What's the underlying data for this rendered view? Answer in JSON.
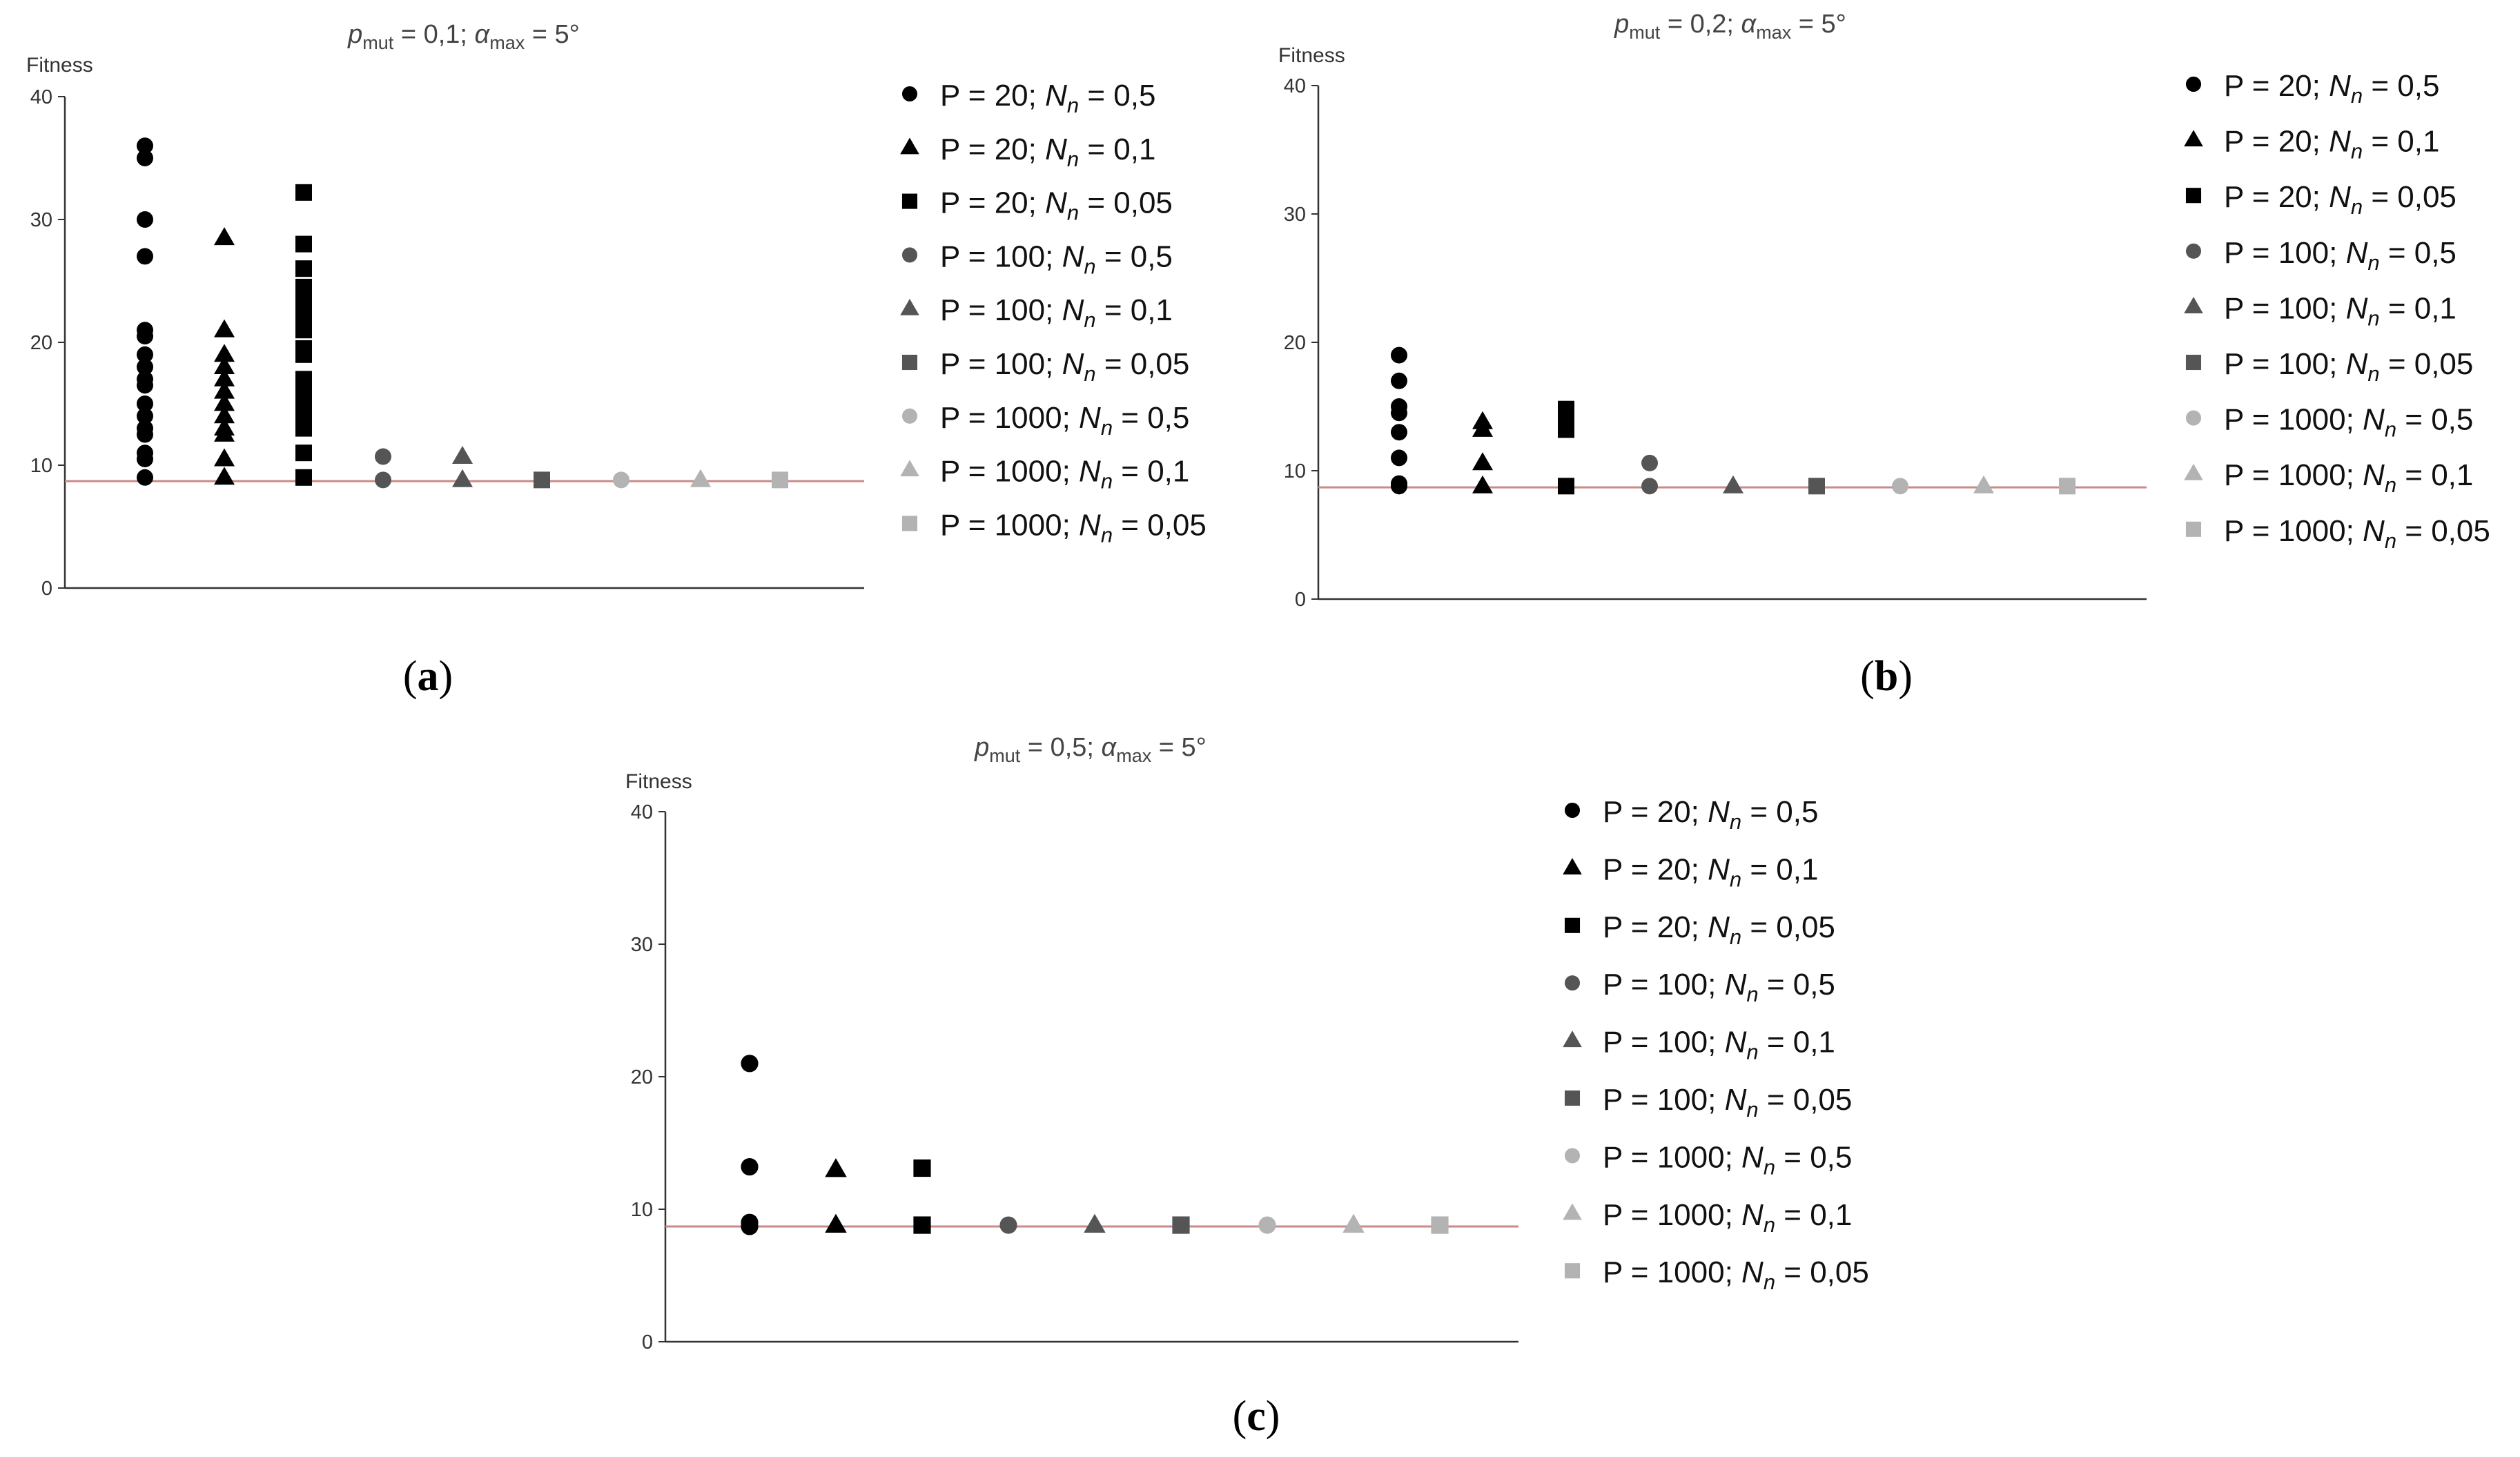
{
  "panels": [
    {
      "id": "a",
      "caption_letter": "a",
      "title": {
        "p_sym": "p",
        "p_sub": "mut",
        "p_val": " = 0,1; ",
        "a_sym": "α",
        "a_sub": "max",
        "a_val": " = 5°"
      },
      "ylabel": "Fitness",
      "yticks": [
        "0",
        "10",
        "20",
        "30",
        "40"
      ]
    },
    {
      "id": "b",
      "caption_letter": "b",
      "title": {
        "p_sym": "p",
        "p_sub": "mut",
        "p_val": " = 0,2; ",
        "a_sym": "α",
        "a_sub": "max",
        "a_val": " = 5°"
      },
      "ylabel": "Fitness",
      "yticks": [
        "0",
        "10",
        "20",
        "30",
        "40"
      ]
    },
    {
      "id": "c",
      "caption_letter": "c",
      "title": {
        "p_sym": "p",
        "p_sub": "mut",
        "p_val": " = 0,5; ",
        "a_sym": "α",
        "a_sub": "max",
        "a_val": " = 5°"
      },
      "ylabel": "Fitness",
      "yticks": [
        "0",
        "10",
        "20",
        "30",
        "40"
      ]
    }
  ],
  "legend_entries": [
    {
      "p_text": "P = 20; ",
      "n_sym": "N",
      "n_sub": "n",
      "n_val": " = 0,5",
      "marker": "circle",
      "color": "#000000"
    },
    {
      "p_text": "P = 20; ",
      "n_sym": "N",
      "n_sub": "n",
      "n_val": " = 0,1",
      "marker": "triangle",
      "color": "#000000"
    },
    {
      "p_text": "P = 20; ",
      "n_sym": "N",
      "n_sub": "n",
      "n_val": " = 0,05",
      "marker": "square",
      "color": "#000000"
    },
    {
      "p_text": "P = 100; ",
      "n_sym": "N",
      "n_sub": "n",
      "n_val": " = 0,5",
      "marker": "circle",
      "color": "#555555"
    },
    {
      "p_text": "P = 100; ",
      "n_sym": "N",
      "n_sub": "n",
      "n_val": " = 0,1",
      "marker": "triangle",
      "color": "#555555"
    },
    {
      "p_text": "P = 100; ",
      "n_sym": "N",
      "n_sub": "n",
      "n_val": " = 0,05",
      "marker": "square",
      "color": "#555555"
    },
    {
      "p_text": "P = 1000; ",
      "n_sym": "N",
      "n_sub": "n",
      "n_val": " = 0,5",
      "marker": "circle",
      "color": "#b3b3b3"
    },
    {
      "p_text": "P = 1000; ",
      "n_sym": "N",
      "n_sub": "n",
      "n_val": " = 0,1",
      "marker": "triangle",
      "color": "#b3b3b3"
    },
    {
      "p_text": "P = 1000; ",
      "n_sym": "N",
      "n_sub": "n",
      "n_val": " = 0,05",
      "marker": "square",
      "color": "#b3b3b3"
    }
  ],
  "colors": {
    "reference_line": "#c98a8a",
    "axis": "#333333"
  },
  "chart_data": [
    {
      "type": "scatter",
      "panel": "a",
      "ylim": [
        0,
        40
      ],
      "reference_line_y": 8.7,
      "series": [
        {
          "name": "P = 20; Nn = 0,5",
          "x": 1,
          "values": [
            36,
            35,
            30,
            27,
            21,
            20.5,
            19,
            18,
            17,
            16.5,
            15,
            14,
            13,
            12.5,
            11,
            10.5,
            9
          ]
        },
        {
          "name": "P = 20; Nn = 0,1",
          "x": 2,
          "values": [
            28.5,
            21,
            19,
            18,
            17,
            16,
            15,
            14,
            13,
            12.5,
            10.5,
            9
          ]
        },
        {
          "name": "P = 20; Nn = 0,05",
          "x": 3,
          "values": [
            32.2,
            28,
            26,
            24.5,
            23.5,
            23,
            22,
            21,
            19.5,
            19,
            17,
            16,
            15,
            14,
            13.5,
            13,
            11,
            9
          ]
        },
        {
          "name": "P = 100; Nn = 0,5",
          "x": 4,
          "values": [
            10.7,
            8.8
          ]
        },
        {
          "name": "P = 100; Nn = 0,1",
          "x": 5,
          "values": [
            10.7,
            8.8
          ]
        },
        {
          "name": "P = 100; Nn = 0,05",
          "x": 6,
          "values": [
            8.8
          ]
        },
        {
          "name": "P = 1000; Nn = 0,5",
          "x": 7,
          "values": [
            8.8
          ]
        },
        {
          "name": "P = 1000; Nn = 0,1",
          "x": 8,
          "values": [
            8.8
          ]
        },
        {
          "name": "P = 1000; Nn = 0,05",
          "x": 9,
          "values": [
            8.8
          ]
        }
      ]
    },
    {
      "type": "scatter",
      "panel": "b",
      "ylim": [
        0,
        40
      ],
      "reference_line_y": 8.7,
      "series": [
        {
          "name": "P = 20; Nn = 0,5",
          "x": 1,
          "values": [
            19,
            17,
            15,
            14.5,
            13,
            11,
            9,
            8.8
          ]
        },
        {
          "name": "P = 20; Nn = 0,1",
          "x": 2,
          "values": [
            13.8,
            13.2,
            10.6,
            8.8
          ]
        },
        {
          "name": "P = 20; Nn = 0,05",
          "x": 3,
          "values": [
            14.8,
            14,
            13.2,
            8.8
          ]
        },
        {
          "name": "P = 100; Nn = 0,5",
          "x": 4,
          "values": [
            10.6,
            8.8
          ]
        },
        {
          "name": "P = 100; Nn = 0,1",
          "x": 5,
          "values": [
            8.8
          ]
        },
        {
          "name": "P = 100; Nn = 0,05",
          "x": 6,
          "values": [
            8.8
          ]
        },
        {
          "name": "P = 1000; Nn = 0,5",
          "x": 7,
          "values": [
            8.8
          ]
        },
        {
          "name": "P = 1000; Nn = 0,1",
          "x": 8,
          "values": [
            8.8
          ]
        },
        {
          "name": "P = 1000; Nn = 0,05",
          "x": 9,
          "values": [
            8.8
          ]
        }
      ]
    },
    {
      "type": "scatter",
      "panel": "c",
      "ylim": [
        0,
        40
      ],
      "reference_line_y": 8.7,
      "series": [
        {
          "name": "P = 20; Nn = 0,5",
          "x": 1,
          "values": [
            21,
            13.2,
            9,
            8.7
          ]
        },
        {
          "name": "P = 20; Nn = 0,1",
          "x": 2,
          "values": [
            13,
            8.8
          ]
        },
        {
          "name": "P = 20; Nn = 0,05",
          "x": 3,
          "values": [
            13.1,
            8.8
          ]
        },
        {
          "name": "P = 100; Nn = 0,5",
          "x": 4,
          "values": [
            8.8
          ]
        },
        {
          "name": "P = 100; Nn = 0,1",
          "x": 5,
          "values": [
            8.8
          ]
        },
        {
          "name": "P = 100; Nn = 0,05",
          "x": 6,
          "values": [
            8.8
          ]
        },
        {
          "name": "P = 1000; Nn = 0,5",
          "x": 7,
          "values": [
            8.8
          ]
        },
        {
          "name": "P = 1000; Nn = 0,1",
          "x": 8,
          "values": [
            8.8
          ]
        },
        {
          "name": "P = 1000; Nn = 0,05",
          "x": 9,
          "values": [
            8.8
          ]
        }
      ]
    }
  ]
}
